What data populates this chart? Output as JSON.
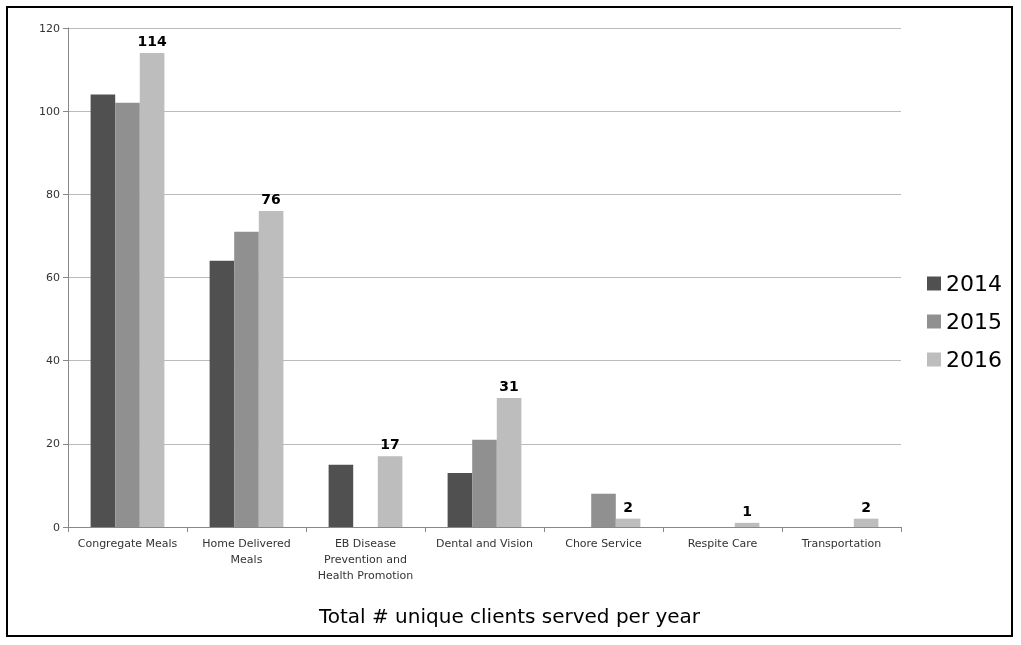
{
  "chart_data": {
    "type": "bar",
    "title": "Total # unique clients served per year",
    "categories": [
      "Congregate Meals",
      "Home Delivered Meals",
      "EB Disease Prevention and Health Promotion",
      "Dental and Vision",
      "Chore Service",
      "Respite Care",
      "Transportation"
    ],
    "series": [
      {
        "name": "2014",
        "color": "#505050",
        "values": [
          104,
          64,
          15,
          13,
          null,
          null,
          null
        ]
      },
      {
        "name": "2015",
        "color": "#909090",
        "values": [
          102,
          71,
          null,
          21,
          8,
          null,
          null
        ]
      },
      {
        "name": "2016",
        "color": "#bdbdbd",
        "values": [
          114,
          76,
          17,
          31,
          2,
          1,
          2
        ],
        "value_labels": [
          "114",
          "76",
          "17",
          "31",
          "2",
          "1",
          "2"
        ]
      }
    ],
    "ylim": [
      0,
      120
    ],
    "yticks": [
      0,
      20,
      40,
      60,
      80,
      100,
      120
    ],
    "grid": "y",
    "legend": "right"
  }
}
